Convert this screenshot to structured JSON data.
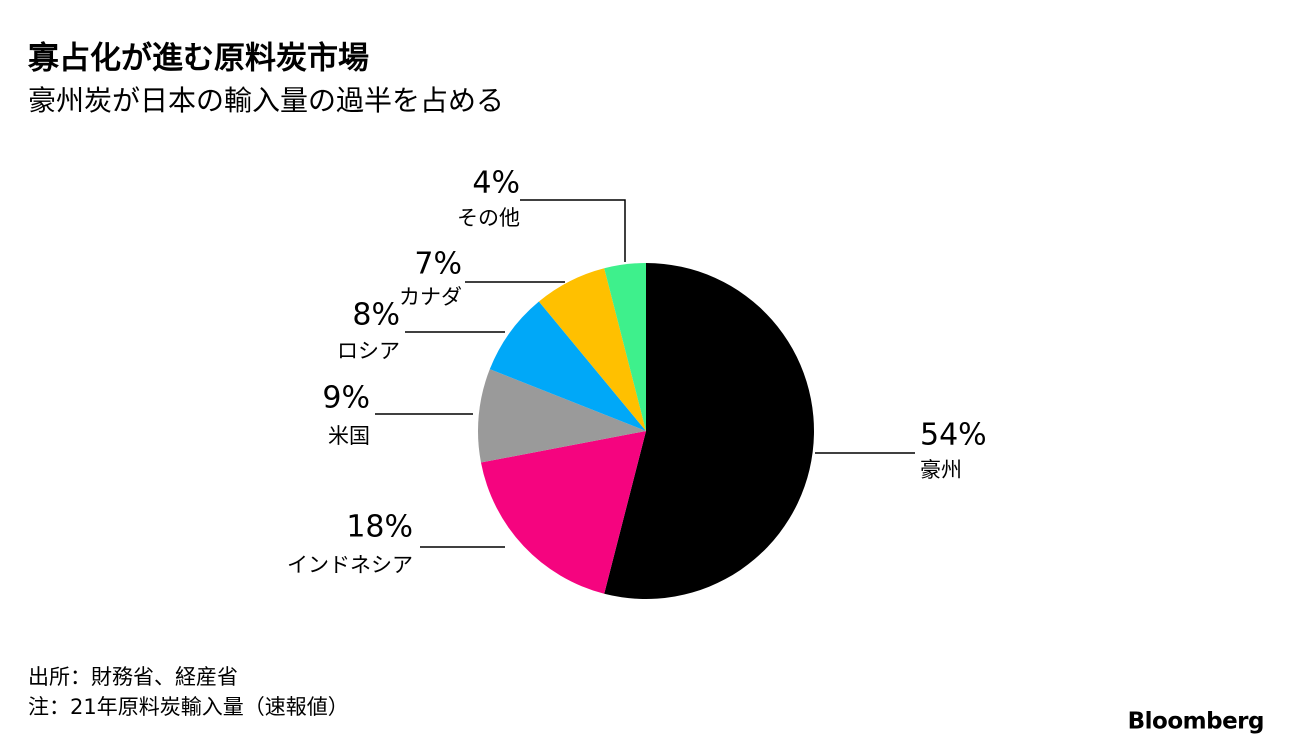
{
  "chart_data": {
    "type": "pie",
    "title": "寡占化が進む原料炭市場",
    "subtitle": "豪州炭が日本の輸入量の過半を占める",
    "categories": [
      "豪州",
      "インドネシア",
      "米国",
      "ロシア",
      "カナダ",
      "その他"
    ],
    "values": [
      54,
      18,
      9,
      8,
      7,
      4
    ],
    "value_labels": [
      "54%",
      "18%",
      "9%",
      "8%",
      "7%",
      "4%"
    ],
    "colors": [
      "#000000",
      "#f5047f",
      "#9a9a9a",
      "#00a8f8",
      "#ffc000",
      "#3ef08c"
    ],
    "source": "出所：財務省、経産省",
    "note": "注：21年原料炭輸入量（速報値）",
    "brand": "Bloomberg"
  }
}
